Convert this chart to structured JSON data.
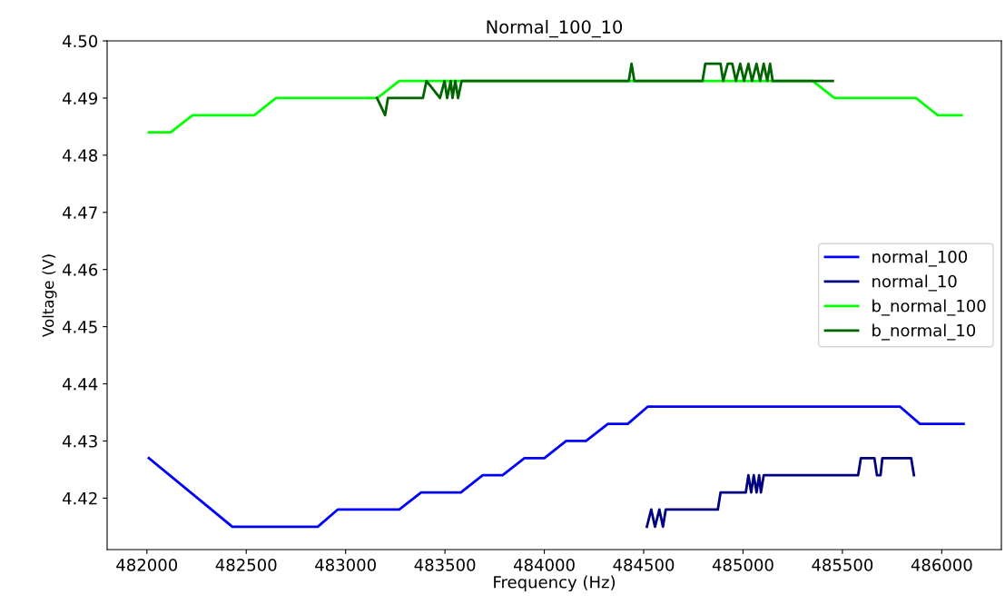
{
  "chart_data": {
    "type": "line",
    "title": "Normal_100_10",
    "xlabel": "Frequency (Hz)",
    "ylabel": "Voltage (V)",
    "xlim": [
      481800,
      486300
    ],
    "xticks": [
      482000,
      482500,
      483000,
      483500,
      484000,
      484500,
      485000,
      485500,
      486000
    ],
    "ylim": [
      4.411,
      4.5
    ],
    "yticks": [
      {
        "value": 4.42,
        "label": "4.42"
      },
      {
        "value": 4.43,
        "label": "4.43"
      },
      {
        "value": 4.44,
        "label": "4.44"
      },
      {
        "value": 4.45,
        "label": "4.45"
      },
      {
        "value": 4.46,
        "label": "4.46"
      },
      {
        "value": 4.47,
        "label": "4.47"
      },
      {
        "value": 4.48,
        "label": "4.48"
      },
      {
        "value": 4.49,
        "label": "4.49"
      },
      {
        "value": 4.5,
        "label": "4.50"
      }
    ],
    "grid": false,
    "legend": "right",
    "marker": "none",
    "line_style": "solid",
    "series": [
      {
        "name": "normal_100",
        "color": "#0000ff",
        "x": [
          482010,
          482430,
          482860,
          482960,
          483270,
          483380,
          483580,
          483690,
          483790,
          483900,
          484000,
          484110,
          484210,
          484320,
          484420,
          484520,
          485790,
          485890,
          486110
        ],
        "values": [
          4.427,
          4.415,
          4.415,
          4.418,
          4.418,
          4.421,
          4.421,
          4.424,
          4.424,
          4.427,
          4.427,
          4.43,
          4.43,
          4.433,
          4.433,
          4.436,
          4.436,
          4.433,
          4.433
        ]
      },
      {
        "name": "normal_10",
        "color": "#000080",
        "x": [
          484516,
          484538,
          484557,
          484579,
          484597,
          484611,
          484873,
          484887,
          485014,
          485027,
          485041,
          485054,
          485068,
          485081,
          485090,
          485104,
          485579,
          485593,
          485661,
          485674,
          485692,
          485701,
          485846,
          485860
        ],
        "values": [
          4.415,
          4.418,
          4.415,
          4.418,
          4.415,
          4.418,
          4.418,
          4.421,
          4.421,
          4.424,
          4.421,
          4.424,
          4.421,
          4.424,
          4.421,
          4.424,
          4.424,
          4.427,
          4.427,
          4.424,
          4.424,
          4.427,
          4.427,
          4.424
        ]
      },
      {
        "name": "b_normal_100",
        "color": "#00ff00",
        "x": [
          482010,
          482120,
          482230,
          482540,
          482650,
          483160,
          483270,
          485350,
          485460,
          485870,
          485980,
          486100
        ],
        "values": [
          4.484,
          4.484,
          4.487,
          4.487,
          4.49,
          4.49,
          4.493,
          4.493,
          4.49,
          4.49,
          4.487,
          4.487
        ]
      },
      {
        "name": "b_normal_10",
        "color": "#006400",
        "x": [
          483158,
          483199,
          483213,
          483389,
          483407,
          483475,
          483498,
          483511,
          483529,
          483538,
          483552,
          483566,
          483584,
          484425,
          484439,
          484453,
          484796,
          484810,
          484887,
          484900,
          484923,
          484946,
          484964,
          484986,
          485005,
          485027,
          485045,
          485068,
          485086,
          485104,
          485122,
          485136,
          485149,
          485163,
          485452
        ],
        "values": [
          4.49,
          4.487,
          4.49,
          4.49,
          4.493,
          4.49,
          4.493,
          4.49,
          4.493,
          4.49,
          4.493,
          4.49,
          4.493,
          4.493,
          4.496,
          4.493,
          4.493,
          4.496,
          4.496,
          4.493,
          4.496,
          4.496,
          4.493,
          4.496,
          4.493,
          4.496,
          4.493,
          4.496,
          4.493,
          4.496,
          4.493,
          4.496,
          4.493,
          4.493,
          4.493
        ]
      }
    ]
  }
}
